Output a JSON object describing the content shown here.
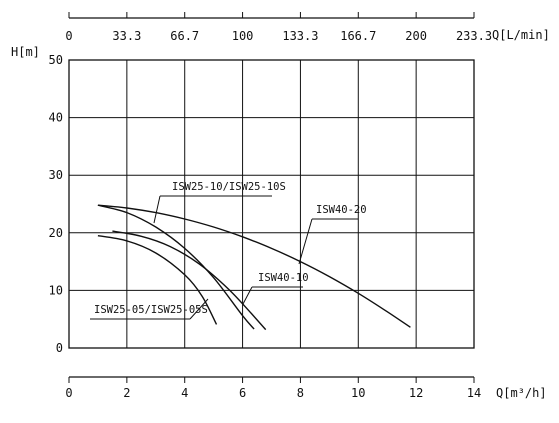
{
  "chart_data": {
    "type": "line",
    "title": "",
    "xlabel": "Q[m³/h]",
    "x2label": "Q[L/min]",
    "ylabel": "H[m]",
    "xlim": [
      0,
      14
    ],
    "ylim": [
      0,
      50
    ],
    "grid": true,
    "x_ticks": [
      "0",
      "2",
      "4",
      "6",
      "8",
      "10",
      "12",
      "14"
    ],
    "x2_ticks": [
      "0",
      "33.3",
      "66.7",
      "100",
      "133.3",
      "166.7",
      "200",
      "233.3"
    ],
    "y_ticks": [
      "0",
      "10",
      "20",
      "30",
      "40",
      "50"
    ],
    "series": [
      {
        "name": "ISW40-20",
        "x": [
          1.0,
          2.0,
          3.0,
          4.0,
          5.0,
          6.0,
          7.0,
          8.0,
          9.0,
          10.0,
          11.0,
          11.8
        ],
        "y": [
          24.8,
          24.3,
          23.5,
          22.4,
          21.0,
          19.3,
          17.3,
          15.0,
          12.4,
          9.5,
          6.3,
          3.6
        ]
      },
      {
        "name": "ISW25-10/ISW25-10S",
        "x": [
          1.0,
          2.0,
          3.0,
          4.0,
          5.0,
          6.0,
          6.4
        ],
        "y": [
          24.8,
          23.5,
          21.0,
          17.3,
          12.2,
          5.6,
          3.3
        ]
      },
      {
        "name": "ISW40-10",
        "x": [
          1.5,
          2.5,
          3.5,
          4.5,
          5.5,
          6.3,
          6.8
        ],
        "y": [
          20.3,
          19.4,
          17.6,
          14.6,
          10.3,
          6.0,
          3.2
        ]
      },
      {
        "name": "ISW25-05/ISW25-05S",
        "x": [
          1.0,
          2.0,
          3.0,
          4.0,
          4.6,
          5.1
        ],
        "y": [
          19.5,
          18.6,
          16.5,
          12.7,
          9.0,
          4.1
        ]
      }
    ],
    "annotations": [
      {
        "text": "ISW25-10/ISW25-10S",
        "series": "ISW25-10/ISW25-10S"
      },
      {
        "text": "ISW40-20",
        "series": "ISW40-20"
      },
      {
        "text": "ISW40-10",
        "series": "ISW40-10"
      },
      {
        "text": "ISW25-05/ISW25-05S",
        "series": "ISW25-05/ISW25-05S"
      }
    ]
  }
}
